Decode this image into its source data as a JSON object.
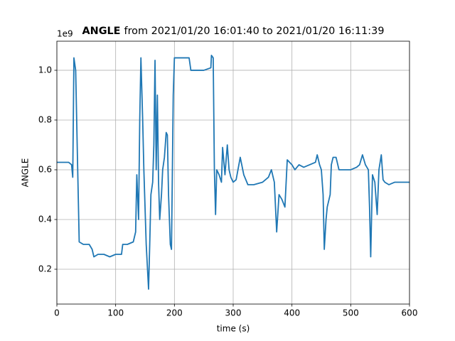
{
  "chart_data": {
    "type": "line",
    "title_bold": "ANGLE",
    "title": "from 2021/01/20 16:01:40 to 2021/01/20 16:11:39",
    "xlabel": "time (s)",
    "ylabel": "ANGLE",
    "y_offset": "1e9",
    "x": [
      0,
      10,
      20,
      25,
      27,
      29,
      32,
      35,
      38,
      45,
      55,
      60,
      63,
      70,
      80,
      90,
      100,
      110,
      112,
      120,
      130,
      134,
      136,
      139,
      141,
      143,
      146,
      148,
      152,
      156,
      158,
      160,
      163,
      165,
      167,
      169,
      171,
      173,
      175,
      178,
      180,
      183,
      186,
      188,
      190,
      193,
      195,
      198,
      200,
      210,
      220,
      225,
      228,
      240,
      250,
      262,
      263,
      266,
      268,
      270,
      272,
      276,
      280,
      282,
      286,
      290,
      293,
      296,
      300,
      305,
      312,
      318,
      325,
      335,
      350,
      360,
      365,
      370,
      374,
      378,
      383,
      388,
      392,
      400,
      405,
      412,
      420,
      430,
      440,
      443,
      447,
      450,
      453,
      455,
      458,
      460,
      465,
      467,
      470,
      475,
      480,
      490,
      500,
      510,
      515,
      520,
      525,
      530,
      532,
      534,
      537,
      541,
      545,
      548,
      552,
      555,
      558,
      565,
      575,
      590,
      600
    ],
    "values": [
      0.63,
      0.63,
      0.63,
      0.62,
      0.57,
      1.05,
      1.0,
      0.65,
      0.31,
      0.3,
      0.3,
      0.28,
      0.25,
      0.26,
      0.26,
      0.25,
      0.26,
      0.26,
      0.3,
      0.3,
      0.31,
      0.35,
      0.58,
      0.4,
      0.8,
      1.05,
      0.8,
      0.6,
      0.3,
      0.12,
      0.3,
      0.5,
      0.55,
      0.7,
      1.04,
      0.6,
      0.9,
      0.55,
      0.4,
      0.5,
      0.6,
      0.65,
      0.75,
      0.74,
      0.5,
      0.3,
      0.28,
      0.9,
      1.05,
      1.05,
      1.05,
      1.05,
      1.0,
      1.0,
      1.0,
      1.01,
      1.06,
      1.05,
      0.6,
      0.42,
      0.6,
      0.58,
      0.55,
      0.69,
      0.58,
      0.7,
      0.6,
      0.57,
      0.55,
      0.56,
      0.65,
      0.58,
      0.54,
      0.54,
      0.55,
      0.57,
      0.6,
      0.55,
      0.35,
      0.5,
      0.48,
      0.45,
      0.64,
      0.62,
      0.6,
      0.62,
      0.61,
      0.62,
      0.63,
      0.66,
      0.62,
      0.6,
      0.5,
      0.28,
      0.4,
      0.45,
      0.5,
      0.62,
      0.65,
      0.65,
      0.6,
      0.6,
      0.6,
      0.61,
      0.62,
      0.66,
      0.62,
      0.6,
      0.45,
      0.25,
      0.58,
      0.55,
      0.42,
      0.6,
      0.66,
      0.56,
      0.55,
      0.54,
      0.55,
      0.55,
      0.55
    ],
    "color": "#1f77b4",
    "xlim": [
      0,
      600
    ],
    "xticks": [
      0,
      100,
      200,
      300,
      400,
      500,
      600
    ],
    "ylim": [
      0.06,
      1.117
    ],
    "yticks": [
      0.2,
      0.4,
      0.6,
      0.8,
      {
        "value": 1,
        "label": "1.0"
      }
    ],
    "grid": true
  }
}
